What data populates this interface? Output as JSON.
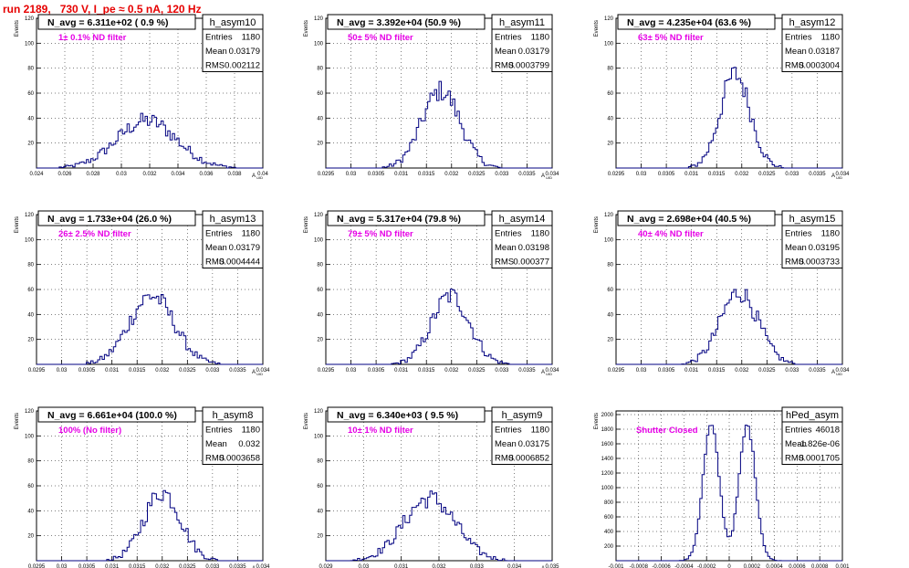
{
  "run_title": "run 2189,   730 V, I_pe ≈ 0.5 nA, 120 Hz",
  "stats_labels": {
    "entries": "Entries",
    "mean": "Mean",
    "rms": "RMS"
  },
  "colors": {
    "title": "#e60000",
    "annotation": "#e600e6",
    "histogram": "#000080",
    "frame": "#000000"
  },
  "chart_data": [
    {
      "type": "bar",
      "name": "h_asym10",
      "navg": "N_avg = 6.311e+02 ( 0.9 %)",
      "note": "1± 0.1% ND filter",
      "entries": "1180",
      "mean": "0.03179",
      "rms": "0.002112",
      "ylabel": "Events",
      "xlabel": "A_UID",
      "xlim": [
        0.024,
        0.04
      ],
      "ylim": [
        0,
        120
      ],
      "xticks": [
        "0.024",
        "0.026",
        "0.028",
        "0.03",
        "0.032",
        "0.034",
        "0.036",
        "0.038",
        "0.04"
      ],
      "xtick_values": [
        0.024,
        0.026,
        0.028,
        0.03,
        0.032,
        0.034,
        0.036,
        0.038,
        0.04
      ],
      "yticks": [
        "20",
        "40",
        "60",
        "80",
        "100",
        "120"
      ],
      "ytick_values": [
        20,
        40,
        60,
        80,
        100,
        120
      ],
      "peaks": [
        0.03179
      ],
      "sigma": 0.002112,
      "peak_height": 38,
      "bins": 100
    },
    {
      "type": "bar",
      "name": "h_asym11",
      "navg": "N_avg = 3.392e+04 (50.9 %)",
      "note": "50± 5% ND filter",
      "entries": "1180",
      "mean": "0.03179",
      "rms": "0.0003799",
      "ylabel": "Events",
      "xlabel": "A_UID",
      "xlim": [
        0.0295,
        0.034
      ],
      "ylim": [
        0,
        120
      ],
      "xticks": [
        "0.0295",
        "0.03",
        "0.0305",
        "0.031",
        "0.0315",
        "0.032",
        "0.0325",
        "0.033",
        "0.0335",
        "0.034"
      ],
      "xtick_values": [
        0.0295,
        0.03,
        0.0305,
        0.031,
        0.0315,
        0.032,
        0.0325,
        0.033,
        0.0335,
        0.034
      ],
      "yticks": [
        "20",
        "40",
        "60",
        "80",
        "100",
        "120"
      ],
      "ytick_values": [
        20,
        40,
        60,
        80,
        100,
        120
      ],
      "peaks": [
        0.03179
      ],
      "sigma": 0.0003799,
      "peak_height": 62,
      "bins": 100
    },
    {
      "type": "bar",
      "name": "h_asym12",
      "navg": "N_avg = 4.235e+04 (63.6 %)",
      "note": "63± 5% ND filter",
      "entries": "1180",
      "mean": "0.03187",
      "rms": "0.0003004",
      "ylabel": "Events",
      "xlabel": "A_UID",
      "xlim": [
        0.0295,
        0.034
      ],
      "ylim": [
        0,
        120
      ],
      "xticks": [
        "0.0295",
        "0.03",
        "0.0305",
        "0.031",
        "0.0315",
        "0.032",
        "0.0325",
        "0.033",
        "0.0335",
        "0.034"
      ],
      "xtick_values": [
        0.0295,
        0.03,
        0.0305,
        0.031,
        0.0315,
        0.032,
        0.0325,
        0.033,
        0.0335,
        0.034
      ],
      "yticks": [
        "20",
        "40",
        "60",
        "80",
        "100",
        "120"
      ],
      "ytick_values": [
        20,
        40,
        60,
        80,
        100,
        120
      ],
      "peaks": [
        0.03187
      ],
      "sigma": 0.0003004,
      "peak_height": 75,
      "bins": 100
    },
    {
      "type": "bar",
      "name": "h_asym13",
      "navg": "N_avg = 1.733e+04 (26.0 %)",
      "note": "26± 2.5% ND filter",
      "entries": "1180",
      "mean": "0.03179",
      "rms": "0.0004444",
      "ylabel": "Events",
      "xlabel": "A_UID",
      "xlim": [
        0.0295,
        0.034
      ],
      "ylim": [
        0,
        120
      ],
      "xticks": [
        "0.0295",
        "0.03",
        "0.0305",
        "0.031",
        "0.0315",
        "0.032",
        "0.0325",
        "0.033",
        "0.0335",
        "0.034"
      ],
      "xtick_values": [
        0.0295,
        0.03,
        0.0305,
        0.031,
        0.0315,
        0.032,
        0.0325,
        0.033,
        0.0335,
        0.034
      ],
      "yticks": [
        "20",
        "40",
        "60",
        "80",
        "100",
        "120"
      ],
      "ytick_values": [
        20,
        40,
        60,
        80,
        100,
        120
      ],
      "peaks": [
        0.03179
      ],
      "sigma": 0.0004444,
      "peak_height": 55,
      "bins": 100
    },
    {
      "type": "bar",
      "name": "h_asym14",
      "navg": "N_avg = 5.317e+04 (79.8 %)",
      "note": "79± 5% ND filter",
      "entries": "1180",
      "mean": "0.03198",
      "rms": "0.000377",
      "ylabel": "Events",
      "xlabel": "A_UID",
      "xlim": [
        0.0295,
        0.034
      ],
      "ylim": [
        0,
        120
      ],
      "xticks": [
        "0.0295",
        "0.03",
        "0.0305",
        "0.031",
        "0.0315",
        "0.032",
        "0.0325",
        "0.033",
        "0.0335",
        "0.034"
      ],
      "xtick_values": [
        0.0295,
        0.03,
        0.0305,
        0.031,
        0.0315,
        0.032,
        0.0325,
        0.033,
        0.0335,
        0.034
      ],
      "yticks": [
        "20",
        "40",
        "60",
        "80",
        "100",
        "120"
      ],
      "ytick_values": [
        20,
        40,
        60,
        80,
        100,
        120
      ],
      "peaks": [
        0.03198
      ],
      "sigma": 0.000377,
      "peak_height": 55,
      "bins": 100
    },
    {
      "type": "bar",
      "name": "h_asym15",
      "navg": "N_avg = 2.698e+04 (40.5 %)",
      "note": "40± 4% ND filter",
      "entries": "1180",
      "mean": "0.03195",
      "rms": "0.0003733",
      "ylabel": "Events",
      "xlabel": "A_UID",
      "xlim": [
        0.0295,
        0.034
      ],
      "ylim": [
        0,
        120
      ],
      "xticks": [
        "0.0295",
        "0.03",
        "0.0305",
        "0.031",
        "0.0315",
        "0.032",
        "0.0325",
        "0.033",
        "0.0335",
        "0.034"
      ],
      "xtick_values": [
        0.0295,
        0.03,
        0.0305,
        0.031,
        0.0315,
        0.032,
        0.0325,
        0.033,
        0.0335,
        0.034
      ],
      "yticks": [
        "20",
        "40",
        "60",
        "80",
        "100",
        "120"
      ],
      "ytick_values": [
        20,
        40,
        60,
        80,
        100,
        120
      ],
      "peaks": [
        0.03195
      ],
      "sigma": 0.0003733,
      "peak_height": 58,
      "bins": 100
    },
    {
      "type": "bar",
      "name": "h_asym8",
      "navg": "N_avg = 6.661e+04 (100.0 %)",
      "note": "100% (No filter)",
      "entries": "1180",
      "mean": "0.032",
      "rms": "0.0003658",
      "ylabel": "Events",
      "xlabel": "A_UID",
      "xlim": [
        0.0295,
        0.034
      ],
      "ylim": [
        0,
        120
      ],
      "xticks": [
        "0.0295",
        "0.03",
        "0.0305",
        "0.031",
        "0.0315",
        "0.032",
        "0.0325",
        "0.033",
        "0.0335",
        "0.034"
      ],
      "xtick_values": [
        0.0295,
        0.03,
        0.0305,
        0.031,
        0.0315,
        0.032,
        0.0325,
        0.033,
        0.0335,
        0.034
      ],
      "yticks": [
        "20",
        "40",
        "60",
        "80",
        "100",
        "120"
      ],
      "ytick_values": [
        20,
        40,
        60,
        80,
        100,
        120
      ],
      "peaks": [
        0.032
      ],
      "sigma": 0.0003658,
      "peak_height": 55,
      "bins": 100
    },
    {
      "type": "bar",
      "name": "h_asym9",
      "navg": "N_avg = 6.340e+03 ( 9.5 %)",
      "note": "10± 1% ND filter",
      "entries": "1180",
      "mean": "0.03175",
      "rms": "0.0006852",
      "ylabel": "Events",
      "xlabel": "A_UID",
      "xlim": [
        0.029,
        0.035
      ],
      "ylim": [
        0,
        120
      ],
      "xticks": [
        "0.029",
        "0.03",
        "0.031",
        "0.032",
        "0.033",
        "0.034",
        "0.035"
      ],
      "xtick_values": [
        0.029,
        0.03,
        0.031,
        0.032,
        0.033,
        0.034,
        0.035
      ],
      "yticks": [
        "20",
        "40",
        "60",
        "80",
        "100",
        "120"
      ],
      "ytick_values": [
        20,
        40,
        60,
        80,
        100,
        120
      ],
      "peaks": [
        0.03175
      ],
      "sigma": 0.0006852,
      "peak_height": 50,
      "bins": 100
    },
    {
      "type": "bar",
      "name": "hPed_asym",
      "navg": "",
      "note": "Shutter Closed",
      "entries": "46018",
      "mean": "-1.826e-06",
      "rms": "0.0001705",
      "ylabel": "Events",
      "xlabel": "",
      "xlim": [
        -0.001,
        0.001
      ],
      "ylim": [
        0,
        2050
      ],
      "xticks": [
        "-0.001",
        "-0.0008",
        "-0.0006",
        "-0.0004",
        "-0.0002",
        "0",
        "0.0002",
        "0.0004",
        "0.0006",
        "0.0008",
        "0.001"
      ],
      "xtick_values": [
        -0.001,
        -0.0008,
        -0.0006,
        -0.0004,
        -0.0002,
        0,
        0.0002,
        0.0004,
        0.0006,
        0.0008,
        0.001
      ],
      "yticks": [
        "200",
        "400",
        "600",
        "800",
        "1000",
        "1200",
        "1400",
        "1600",
        "1800",
        "2000"
      ],
      "ytick_values": [
        200,
        400,
        600,
        800,
        1000,
        1200,
        1400,
        1600,
        1800,
        2000
      ],
      "peaks": [
        -0.00016,
        0.00016
      ],
      "sigma": 7.26e-05,
      "peak_height": 1850,
      "bins": 100
    }
  ]
}
